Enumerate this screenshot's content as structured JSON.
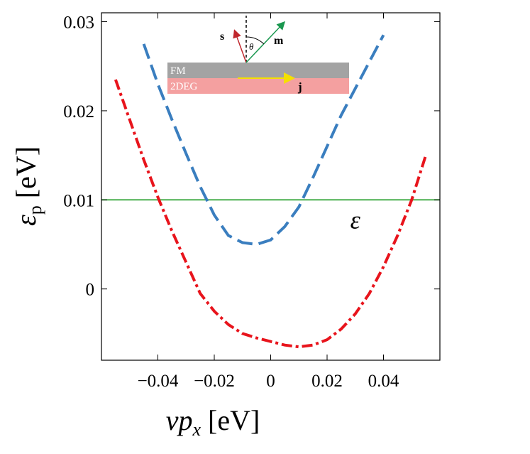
{
  "chart_data": {
    "type": "line",
    "xlabel": {
      "symbol": "vp",
      "sub": "x",
      "unit": "[eV]"
    },
    "ylabel": {
      "symbol": "ε",
      "sub": "p",
      "unit": "[eV]"
    },
    "x": [
      -0.055,
      -0.05,
      -0.045,
      -0.04,
      -0.035,
      -0.03,
      -0.025,
      -0.02,
      -0.015,
      -0.01,
      -0.005,
      0,
      0.005,
      0.01,
      0.015,
      0.02,
      0.025,
      0.03,
      0.035,
      0.04,
      0.045,
      0.05,
      0.055
    ],
    "series": [
      {
        "color": "#3a7ebf",
        "dash": "22,9",
        "values": [
          null,
          null,
          0.0275,
          0.023,
          0.019,
          0.0152,
          0.0115,
          0.0083,
          0.006,
          0.0052,
          0.005,
          0.0055,
          0.007,
          0.0092,
          0.0125,
          0.016,
          0.0195,
          0.0225,
          0.0255,
          0.0285,
          null,
          null,
          null
        ]
      },
      {
        "color": "#e8141c",
        "dash": "15,5,4,5",
        "values": [
          0.0235,
          0.019,
          0.0145,
          0.0103,
          0.0065,
          0.003,
          -0.0005,
          -0.0025,
          -0.004,
          -0.005,
          -0.0055,
          -0.0059,
          -0.0063,
          -0.0065,
          -0.0063,
          -0.0057,
          -0.0045,
          -0.0028,
          -0.0005,
          0.0025,
          0.006,
          0.01,
          0.015
        ]
      }
    ],
    "reference_line": {
      "value": 0.01,
      "label": "ε",
      "color": "#4caf50"
    },
    "xlim": [
      -0.06,
      0.06
    ],
    "ylim": [
      -0.008,
      0.031
    ],
    "xticks": [
      {
        "value": -0.04,
        "label": "−0.04"
      },
      {
        "value": -0.02,
        "label": "−0.02"
      },
      0,
      0.02,
      0.04
    ],
    "yticks": [
      0,
      0.01,
      0.02,
      0.03
    ],
    "inset": {
      "s": "s",
      "m": "m",
      "theta": "θ",
      "fm": "FM",
      "twodeg": "2DEG",
      "j": "j"
    }
  }
}
